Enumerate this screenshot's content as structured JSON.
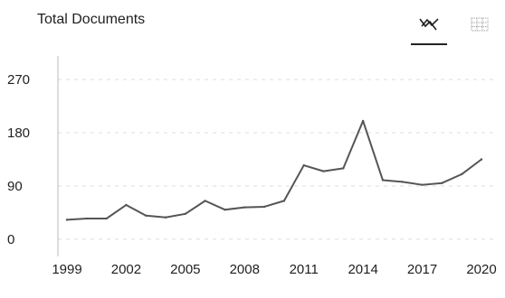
{
  "header": {
    "title": "Total Documents",
    "line_view_icon": "line-chart-icon",
    "table_view_icon": "table-grid-icon"
  },
  "chart_data": {
    "type": "line",
    "title": "Total Documents",
    "xlabel": "",
    "ylabel": "",
    "x": [
      1999,
      2000,
      2001,
      2002,
      2003,
      2004,
      2005,
      2006,
      2007,
      2008,
      2009,
      2010,
      2011,
      2012,
      2013,
      2014,
      2015,
      2016,
      2017,
      2018,
      2019,
      2020
    ],
    "series": [
      {
        "values": [
          33,
          35,
          35,
          58,
          40,
          37,
          43,
          65,
          50,
          54,
          55,
          65,
          125,
          115,
          120,
          200,
          100,
          97,
          92,
          95,
          110,
          135
        ]
      }
    ],
    "xticks": [
      1999,
      2002,
      2005,
      2008,
      2011,
      2014,
      2017,
      2020
    ],
    "yticks": [
      0,
      90,
      180,
      270
    ],
    "xlim": [
      1999,
      2020
    ],
    "ylim": [
      0,
      270
    ],
    "grid": "dashed-horizontal",
    "line_color": "#555555"
  }
}
